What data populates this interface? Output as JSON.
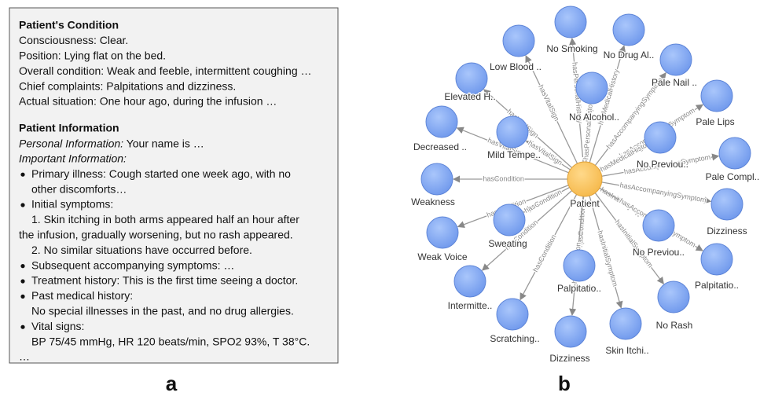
{
  "panel_a": {
    "label": "a",
    "condition": {
      "title": "Patient's Condition",
      "lines": [
        "Consciousness: Clear.",
        "Position: Lying flat on the bed.",
        "Overall condition: Weak and feeble, intermittent coughing …",
        "Chief complaints: Palpitations and dizziness.",
        "Actual situation: One hour ago, during the infusion …"
      ]
    },
    "information": {
      "title": "Patient Information",
      "personal": {
        "label": "Personal Information:",
        "text": " Your name is …"
      },
      "important_label": "Important Information:",
      "bullets": [
        {
          "text": "Primary illness: Cough started one week ago, with no",
          "continuation": [
            "other discomforts…"
          ]
        },
        {
          "text": "Initial symptoms:",
          "continuation": [
            "1. Skin itching in both arms appeared half an hour after",
            "the infusion, gradually worsening, but no rash appeared.",
            "2. No similar situations have occurred before."
          ]
        },
        {
          "text": "Subsequent accompanying symptoms: …",
          "continuation": []
        },
        {
          "text": "Treatment history: This is the first time seeing a doctor.",
          "continuation": []
        },
        {
          "text": "Past medical history:",
          "continuation": [
            "No special illnesses in the past, and no drug allergies."
          ]
        },
        {
          "text": "Vital signs:",
          "continuation": [
            "BP 75/45 mmHg, HR 120 beats/min, SPO2 93%, T 38°C."
          ]
        }
      ],
      "ellipsis": "…"
    }
  },
  "panel_b": {
    "label": "b",
    "center": "Patient",
    "nodes": [
      {
        "label": "Low Blood ..",
        "relation": "hasVitalSign"
      },
      {
        "label": "No Smoking",
        "relation": "hasPersonalHistory"
      },
      {
        "label": "No Drug Al..",
        "relation": "hasMedicalHistory"
      },
      {
        "label": "No Alcohol..",
        "relation": "hasPersonalHistory"
      },
      {
        "label": "Pale Nail ..",
        "relation": "hasAccompanyingSymptom"
      },
      {
        "label": "Elevated H..",
        "relation": "hasVitalSign"
      },
      {
        "label": "Pale Lips",
        "relation": "hasAccompanyingSymptom"
      },
      {
        "label": "Decreased ..",
        "relation": "hasVitalSign"
      },
      {
        "label": "Mild Tempe..",
        "relation": "hasVitalSign"
      },
      {
        "label": "No Previou..",
        "relation": "hasMedicalHistory"
      },
      {
        "label": "Pale Compl..",
        "relation": "hasAccompanyingSymptom"
      },
      {
        "label": "Weakness",
        "relation": "hasCondition"
      },
      {
        "label": "Dizziness",
        "relation": "hasAccompanyingSymptom"
      },
      {
        "label": "Weak Voice",
        "relation": "hasCondition"
      },
      {
        "label": "Sweating",
        "relation": "hasCondition"
      },
      {
        "label": "No Previou..",
        "relation": "hasInitialSymptom"
      },
      {
        "label": "Palpitatio..",
        "relation": "hasAccompanyingSymptom"
      },
      {
        "label": "Intermitte..",
        "relation": "hasCondition"
      },
      {
        "label": "Palpitatio..",
        "relation": "hasCondition"
      },
      {
        "label": "No Rash",
        "relation": "hasInitialSymptom"
      },
      {
        "label": "Scratching..",
        "relation": "hasCondition"
      },
      {
        "label": "Skin Itchi..",
        "relation": "hasInitialSymptom"
      },
      {
        "label": "Dizziness",
        "relation": "hasCondition"
      }
    ]
  }
}
